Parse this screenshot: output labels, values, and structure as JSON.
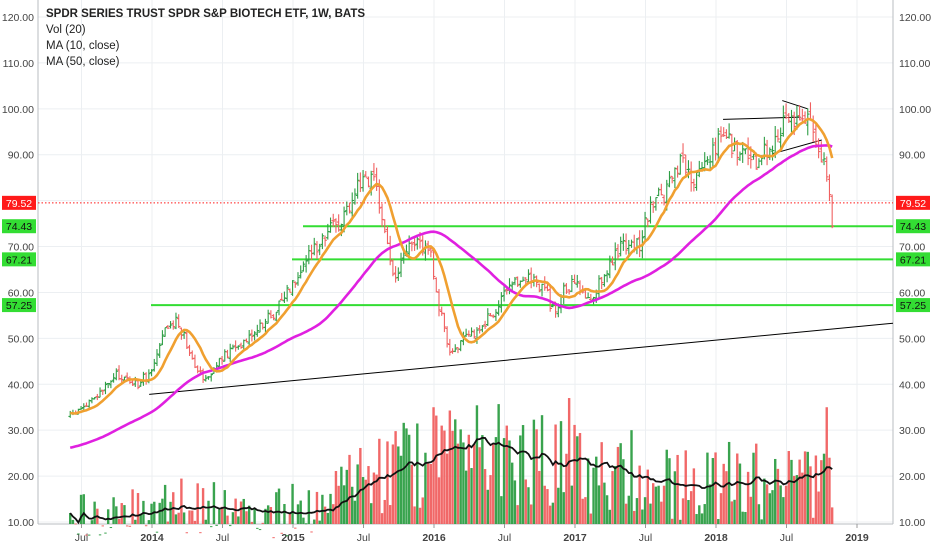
{
  "chart_data": {
    "type": "candlestick",
    "title": "SPDR SERIES TRUST SPDR S&P BIOTECH ETF, 1W, BATS",
    "indicators": [
      "Vol (20)",
      "MA (10, close)",
      "MA (50, close)"
    ],
    "ylim": [
      9,
      125
    ],
    "y_ticks": [
      "10.00",
      "20.00",
      "30.00",
      "40.00",
      "50.00",
      "60.00",
      "70.00",
      "80.00",
      "90.00",
      "100.00",
      "110.00",
      "120.00"
    ],
    "x_ticks": [
      "Jul",
      "2014",
      "Jul",
      "2015",
      "Jul",
      "2016",
      "Jul",
      "2017",
      "Jul",
      "2018",
      "Jul",
      "2019"
    ],
    "price_labels": [
      {
        "text": "79.52",
        "value": 79.52,
        "color": "#ff1a1a"
      },
      {
        "text": "74.43",
        "value": 74.43,
        "color": "#33dd33"
      },
      {
        "text": "67.21",
        "value": 67.21,
        "color": "#33dd33"
      },
      {
        "text": "57.25",
        "value": 57.25,
        "color": "#33dd33"
      }
    ],
    "up_color": "#2e9e45",
    "down_color": "#f06060",
    "ma10_color": "#f0a030",
    "ma50_color": "#e020e0",
    "vol_ma_color": "#111111",
    "support_color": "#33dd33",
    "last_price_line_color": "#ff1a1a",
    "trendline_color": "#000000",
    "grid": true,
    "legend_position": "top-left",
    "price_anchors": [
      [
        2013.42,
        33
      ],
      [
        2013.6,
        37
      ],
      [
        2013.75,
        42
      ],
      [
        2013.9,
        40
      ],
      [
        2014.0,
        43
      ],
      [
        2014.1,
        52
      ],
      [
        2014.18,
        54
      ],
      [
        2014.3,
        45
      ],
      [
        2014.38,
        41
      ],
      [
        2014.45,
        44
      ],
      [
        2014.55,
        47
      ],
      [
        2014.7,
        51
      ],
      [
        2014.85,
        55
      ],
      [
        2014.95,
        60
      ],
      [
        2015.05,
        65
      ],
      [
        2015.2,
        72
      ],
      [
        2015.35,
        76
      ],
      [
        2015.5,
        86
      ],
      [
        2015.58,
        83
      ],
      [
        2015.65,
        74
      ],
      [
        2015.72,
        62
      ],
      [
        2015.8,
        69
      ],
      [
        2015.9,
        71
      ],
      [
        2015.98,
        69
      ],
      [
        2016.02,
        58
      ],
      [
        2016.12,
        47
      ],
      [
        2016.2,
        49
      ],
      [
        2016.35,
        53
      ],
      [
        2016.5,
        59
      ],
      [
        2016.65,
        64
      ],
      [
        2016.78,
        61
      ],
      [
        2016.85,
        56
      ],
      [
        2016.92,
        60
      ],
      [
        2017.0,
        62
      ],
      [
        2017.1,
        58
      ],
      [
        2017.2,
        64
      ],
      [
        2017.35,
        71
      ],
      [
        2017.45,
        70
      ],
      [
        2017.55,
        80
      ],
      [
        2017.65,
        82
      ],
      [
        2017.75,
        88
      ],
      [
        2017.85,
        84
      ],
      [
        2017.95,
        90
      ],
      [
        2018.05,
        95
      ],
      [
        2018.12,
        92
      ],
      [
        2018.2,
        90
      ],
      [
        2018.3,
        88
      ],
      [
        2018.4,
        93
      ],
      [
        2018.5,
        99
      ],
      [
        2018.58,
        98
      ],
      [
        2018.65,
        97
      ],
      [
        2018.72,
        94
      ],
      [
        2018.78,
        85
      ],
      [
        2018.83,
        77
      ]
    ],
    "volume_anchors": [
      [
        2013.42,
        11
      ],
      [
        2014.0,
        13
      ],
      [
        2014.3,
        14
      ],
      [
        2014.6,
        12
      ],
      [
        2014.9,
        12
      ],
      [
        2015.1,
        14
      ],
      [
        2015.3,
        16
      ],
      [
        2015.5,
        19
      ],
      [
        2015.8,
        22
      ],
      [
        2016.0,
        24
      ],
      [
        2016.2,
        26
      ],
      [
        2016.5,
        25
      ],
      [
        2016.8,
        24
      ],
      [
        2017.0,
        22
      ],
      [
        2017.3,
        20
      ],
      [
        2017.6,
        19
      ],
      [
        2017.9,
        18
      ],
      [
        2018.1,
        19
      ],
      [
        2018.3,
        19
      ],
      [
        2018.5,
        20
      ],
      [
        2018.7,
        18
      ],
      [
        2018.83,
        20
      ]
    ],
    "volume_spikes": [
      [
        2016.0,
        35
      ],
      [
        2016.05,
        31
      ],
      [
        2016.95,
        37
      ],
      [
        2016.52,
        31
      ],
      [
        2018.78,
        35
      ],
      [
        2017.4,
        30
      ],
      [
        2016.25,
        29
      ],
      [
        2015.83,
        29
      ],
      [
        2018.8,
        24
      ]
    ]
  }
}
